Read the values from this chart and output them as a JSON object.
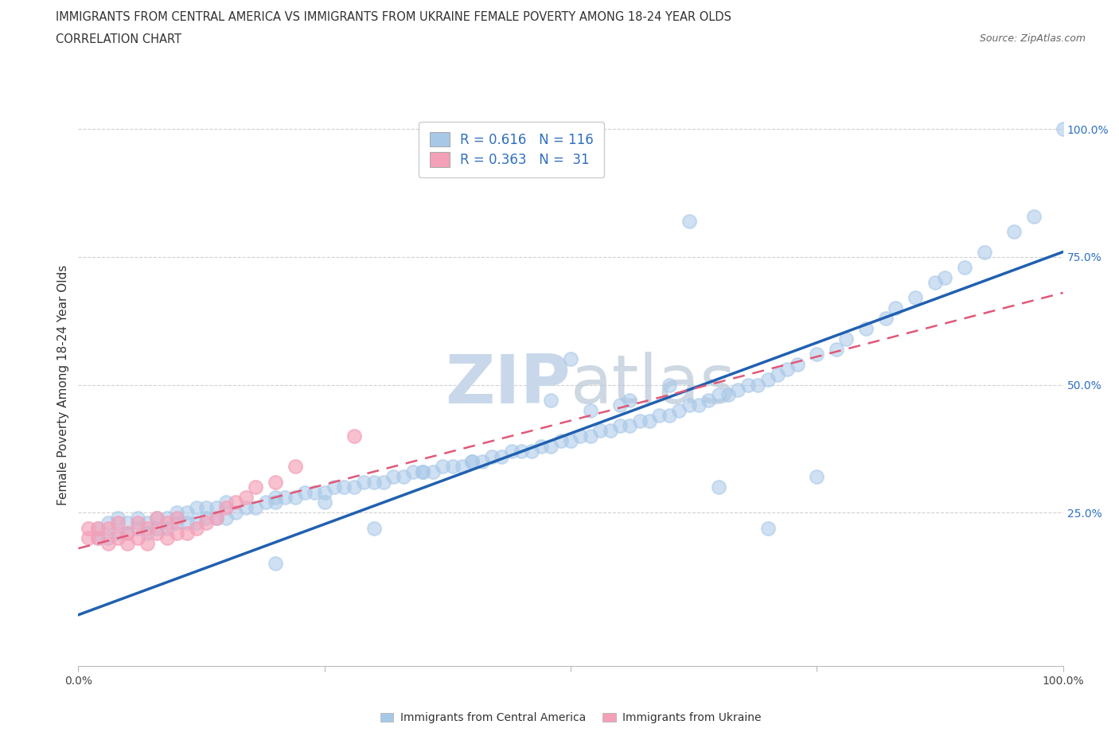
{
  "title1": "IMMIGRANTS FROM CENTRAL AMERICA VS IMMIGRANTS FROM UKRAINE FEMALE POVERTY AMONG 18-24 YEAR OLDS",
  "title2": "CORRELATION CHART",
  "source": "Source: ZipAtlas.com",
  "ylabel": "Female Poverty Among 18-24 Year Olds",
  "xlim": [
    0,
    1.0
  ],
  "ylim": [
    -0.05,
    1.05
  ],
  "xticks": [
    0.0,
    0.25,
    0.5,
    0.75,
    1.0
  ],
  "yticks": [
    0.25,
    0.5,
    0.75,
    1.0
  ],
  "xticklabels_show": [
    "0.0%",
    "100.0%"
  ],
  "xticklabels_show_pos": [
    0.0,
    1.0
  ],
  "yticklabels": [
    "25.0%",
    "50.0%",
    "75.0%",
    "100.0%"
  ],
  "blue_color": "#a8c8e8",
  "pink_color": "#f4a0b8",
  "blue_line_color": "#2060b0",
  "pink_line_color": "#e05878",
  "legend_text_color": "#3070c0",
  "ytick_color": "#3070c0",
  "watermark_color": "#c8d8ea",
  "r_blue": 0.616,
  "n_blue": 116,
  "r_pink": 0.363,
  "n_pink": 31,
  "blue_line_x0": 0.0,
  "blue_line_y0": 0.05,
  "blue_line_x1": 1.0,
  "blue_line_y1": 0.76,
  "pink_line_x0": 0.0,
  "pink_line_y0": 0.18,
  "pink_line_x1": 1.0,
  "pink_line_y1": 0.68,
  "blue_scatter_x": [
    0.02,
    0.02,
    0.03,
    0.03,
    0.04,
    0.04,
    0.05,
    0.05,
    0.06,
    0.06,
    0.07,
    0.07,
    0.08,
    0.08,
    0.09,
    0.09,
    0.1,
    0.1,
    0.11,
    0.11,
    0.12,
    0.12,
    0.13,
    0.13,
    0.14,
    0.14,
    0.15,
    0.15,
    0.16,
    0.17,
    0.18,
    0.19,
    0.2,
    0.2,
    0.21,
    0.22,
    0.23,
    0.24,
    0.25,
    0.26,
    0.27,
    0.28,
    0.29,
    0.3,
    0.31,
    0.32,
    0.33,
    0.34,
    0.35,
    0.36,
    0.37,
    0.38,
    0.39,
    0.4,
    0.41,
    0.42,
    0.43,
    0.44,
    0.45,
    0.46,
    0.47,
    0.48,
    0.49,
    0.5,
    0.51,
    0.52,
    0.53,
    0.54,
    0.55,
    0.56,
    0.57,
    0.58,
    0.59,
    0.6,
    0.61,
    0.62,
    0.63,
    0.64,
    0.65,
    0.66,
    0.67,
    0.68,
    0.69,
    0.7,
    0.71,
    0.72,
    0.73,
    0.75,
    0.77,
    0.78,
    0.8,
    0.82,
    0.83,
    0.85,
    0.87,
    0.88,
    0.9,
    0.92,
    0.95,
    0.97,
    1.0,
    0.62,
    0.5,
    0.48,
    0.56,
    0.6,
    0.4,
    0.35,
    0.3,
    0.25,
    0.2,
    0.55,
    0.65,
    0.7,
    0.75,
    0.52
  ],
  "blue_scatter_y": [
    0.2,
    0.22,
    0.2,
    0.23,
    0.21,
    0.24,
    0.21,
    0.23,
    0.22,
    0.24,
    0.21,
    0.23,
    0.22,
    0.24,
    0.22,
    0.24,
    0.23,
    0.25,
    0.23,
    0.25,
    0.23,
    0.26,
    0.24,
    0.26,
    0.24,
    0.26,
    0.24,
    0.27,
    0.25,
    0.26,
    0.26,
    0.27,
    0.27,
    0.28,
    0.28,
    0.28,
    0.29,
    0.29,
    0.29,
    0.3,
    0.3,
    0.3,
    0.31,
    0.31,
    0.31,
    0.32,
    0.32,
    0.33,
    0.33,
    0.33,
    0.34,
    0.34,
    0.34,
    0.35,
    0.35,
    0.36,
    0.36,
    0.37,
    0.37,
    0.37,
    0.38,
    0.38,
    0.39,
    0.39,
    0.4,
    0.4,
    0.41,
    0.41,
    0.42,
    0.42,
    0.43,
    0.43,
    0.44,
    0.44,
    0.45,
    0.46,
    0.46,
    0.47,
    0.48,
    0.48,
    0.49,
    0.5,
    0.5,
    0.51,
    0.52,
    0.53,
    0.54,
    0.56,
    0.57,
    0.59,
    0.61,
    0.63,
    0.65,
    0.67,
    0.7,
    0.71,
    0.73,
    0.76,
    0.8,
    0.83,
    1.0,
    0.82,
    0.55,
    0.47,
    0.47,
    0.5,
    0.35,
    0.33,
    0.22,
    0.27,
    0.15,
    0.46,
    0.3,
    0.22,
    0.32,
    0.45
  ],
  "pink_scatter_x": [
    0.01,
    0.01,
    0.02,
    0.02,
    0.03,
    0.03,
    0.04,
    0.04,
    0.05,
    0.05,
    0.06,
    0.06,
    0.07,
    0.07,
    0.08,
    0.08,
    0.09,
    0.09,
    0.1,
    0.1,
    0.11,
    0.12,
    0.13,
    0.14,
    0.15,
    0.16,
    0.17,
    0.18,
    0.2,
    0.22,
    0.28
  ],
  "pink_scatter_y": [
    0.2,
    0.22,
    0.2,
    0.22,
    0.19,
    0.22,
    0.2,
    0.23,
    0.19,
    0.21,
    0.2,
    0.23,
    0.19,
    0.22,
    0.21,
    0.24,
    0.2,
    0.23,
    0.21,
    0.24,
    0.21,
    0.22,
    0.23,
    0.24,
    0.26,
    0.27,
    0.28,
    0.3,
    0.31,
    0.34,
    0.4
  ],
  "grid_color": "#cccccc",
  "title_fontsize": 11,
  "axis_label_fontsize": 11
}
